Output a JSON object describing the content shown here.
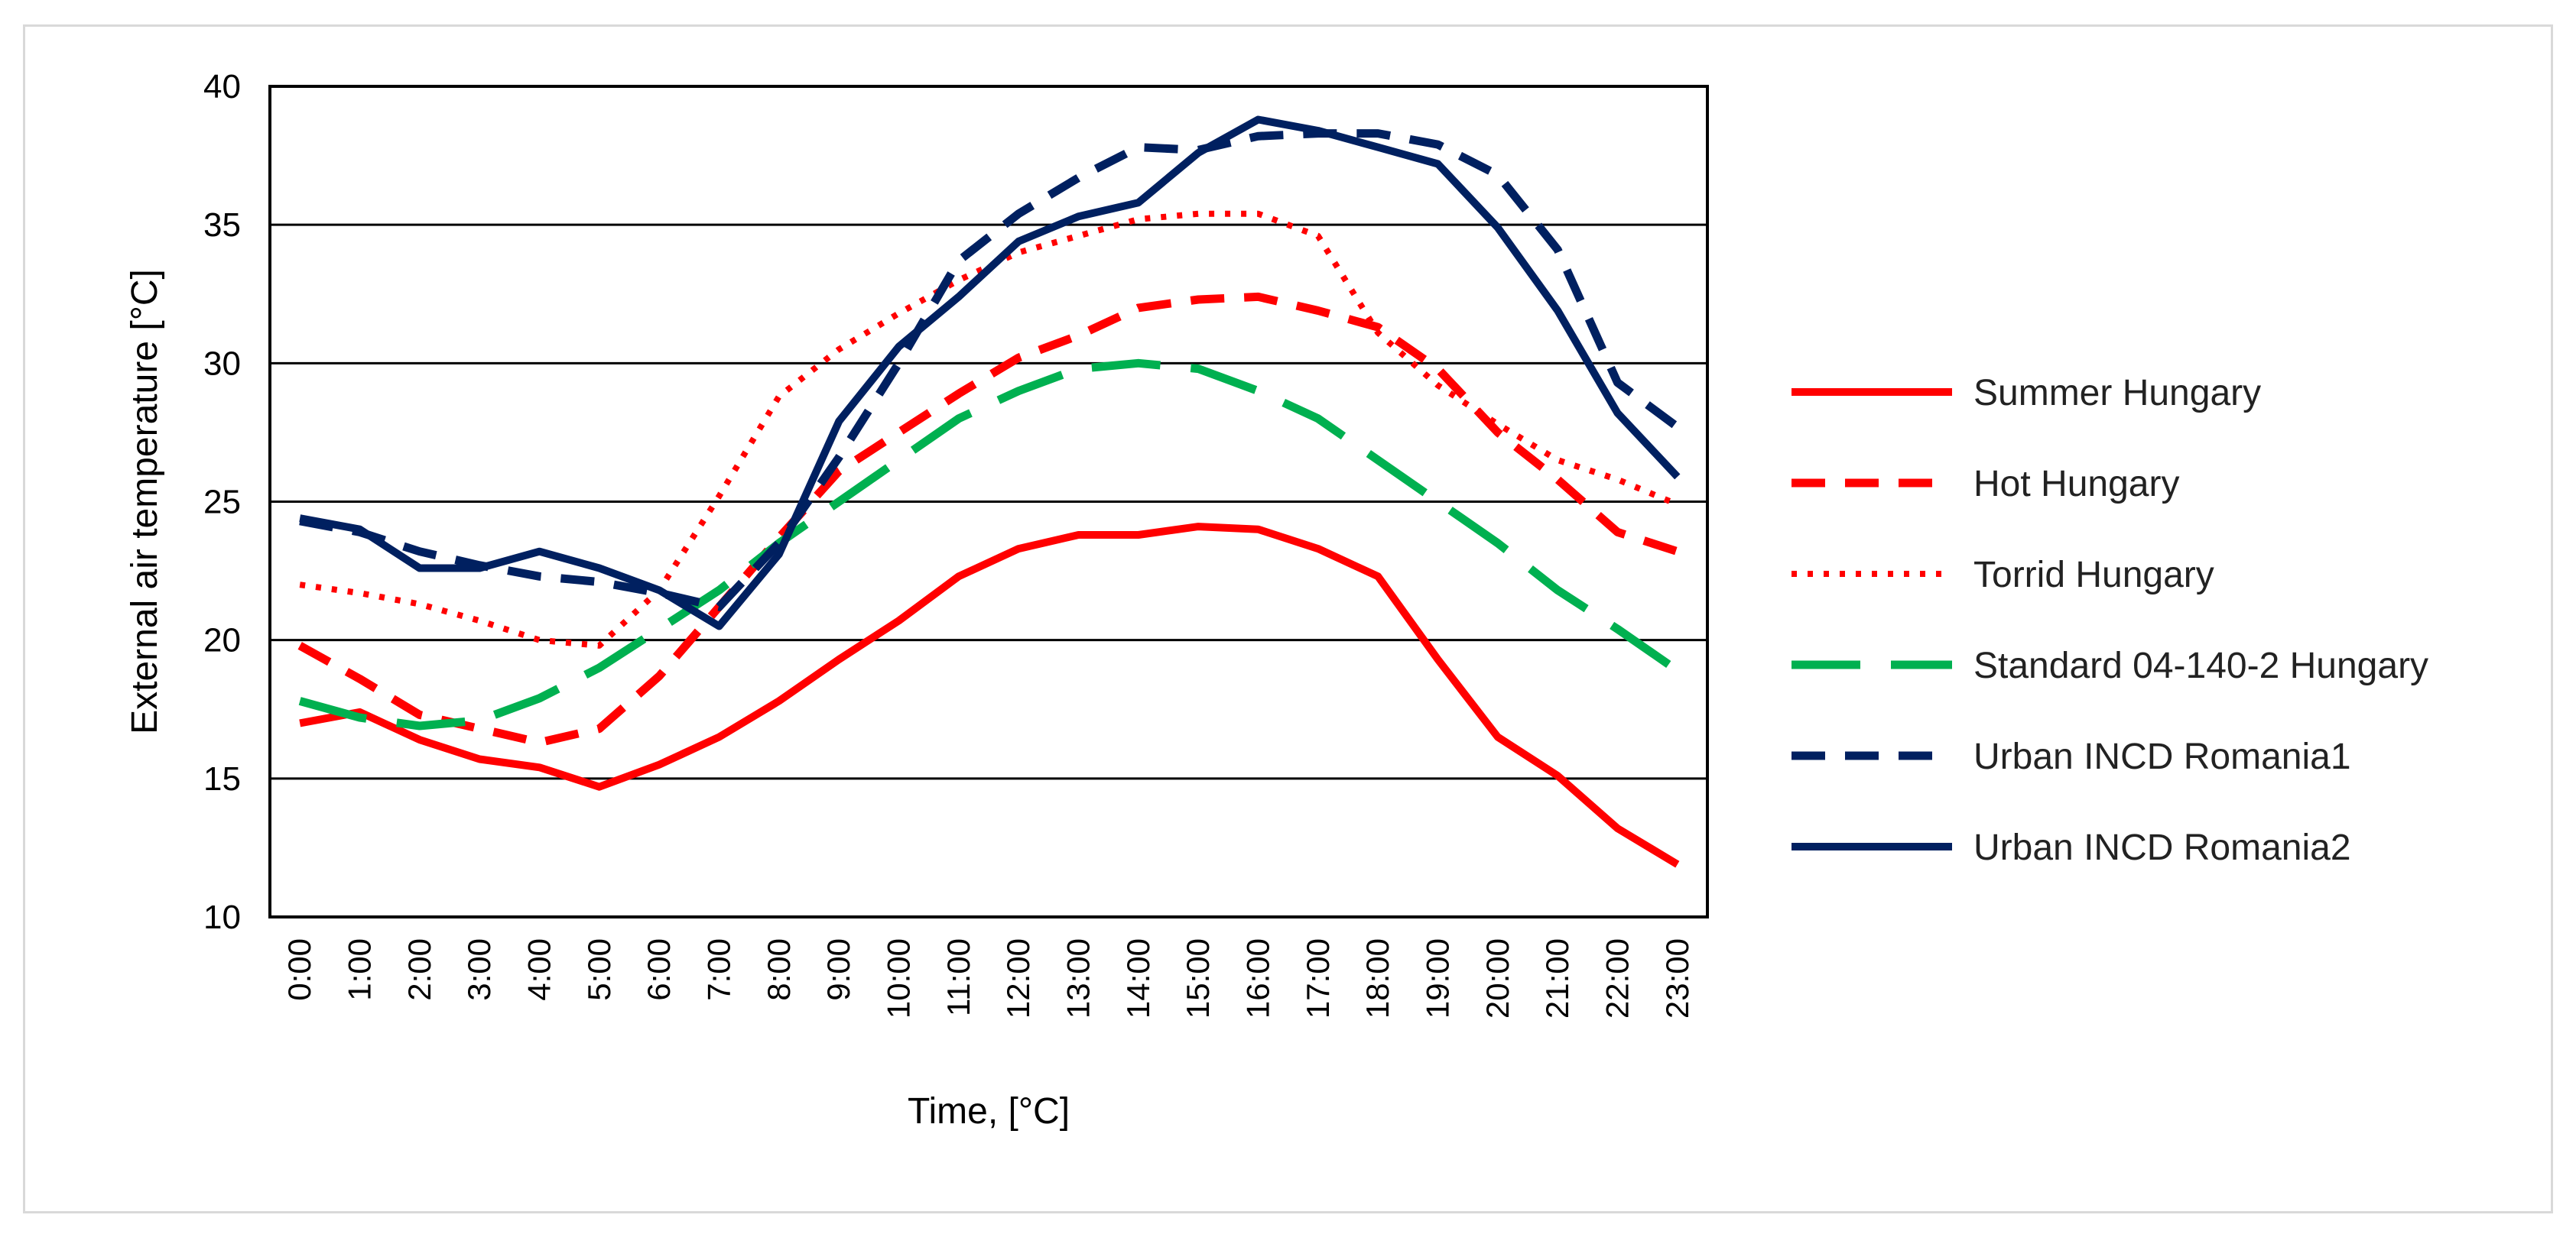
{
  "chart_data": {
    "type": "line",
    "title": "",
    "xlabel": "Time, [°C]",
    "ylabel": "External air temperature  [°C]",
    "ylim": [
      10,
      40
    ],
    "yticks": [
      10,
      15,
      20,
      25,
      30,
      35,
      40
    ],
    "grid": true,
    "legend_position": "right",
    "categories": [
      "0:00",
      "1:00",
      "2:00",
      "3:00",
      "4:00",
      "5:00",
      "6:00",
      "7:00",
      "8:00",
      "9:00",
      "10:00",
      "11:00",
      "12:00",
      "13:00",
      "14:00",
      "15:00",
      "16:00",
      "17:00",
      "18:00",
      "19:00",
      "20:00",
      "21:00",
      "22:00",
      "23:00"
    ],
    "series": [
      {
        "name": "Summer Hungary",
        "color": "#ff0000",
        "style": "solid",
        "values": [
          17.0,
          17.4,
          16.4,
          15.7,
          15.4,
          14.7,
          15.5,
          16.5,
          17.8,
          19.3,
          20.7,
          22.3,
          23.3,
          23.8,
          23.8,
          24.1,
          24.0,
          23.3,
          22.3,
          19.3,
          16.5,
          15.1,
          13.2,
          11.9
        ]
      },
      {
        "name": "Hot Hungary",
        "color": "#ff0000",
        "style": "dashed",
        "values": [
          19.8,
          18.6,
          17.3,
          16.8,
          16.3,
          16.8,
          18.7,
          21.2,
          23.7,
          26.1,
          27.5,
          28.9,
          30.2,
          31.0,
          32.0,
          32.3,
          32.4,
          31.9,
          31.3,
          29.8,
          27.5,
          25.8,
          23.9,
          23.2
        ]
      },
      {
        "name": "Torrid Hungary",
        "color": "#ff0000",
        "style": "dotted",
        "values": [
          22.0,
          21.7,
          21.3,
          20.7,
          20.0,
          19.8,
          21.8,
          25.2,
          28.8,
          30.5,
          31.8,
          33.0,
          34.0,
          34.6,
          35.2,
          35.4,
          35.4,
          34.6,
          31.1,
          29.2,
          27.8,
          26.5,
          25.8,
          24.9
        ]
      },
      {
        "name": "Standard 04-140-2 Hungary",
        "color": "#00b050",
        "style": "longdash",
        "values": [
          17.8,
          17.2,
          16.9,
          17.1,
          17.9,
          19.0,
          20.4,
          21.8,
          23.5,
          25.0,
          26.5,
          28.0,
          29.0,
          29.8,
          30.0,
          29.8,
          29.0,
          28.0,
          26.5,
          25.0,
          23.5,
          21.8,
          20.4,
          18.9
        ]
      },
      {
        "name": "Urban INCD Romania1",
        "color": "#002060",
        "style": "dashed",
        "values": [
          24.3,
          23.9,
          23.2,
          22.7,
          22.3,
          22.1,
          21.7,
          21.2,
          23.5,
          26.6,
          30.0,
          33.7,
          35.4,
          36.7,
          37.8,
          37.7,
          38.2,
          38.3,
          38.3,
          37.9,
          36.8,
          34.1,
          29.3,
          27.7
        ]
      },
      {
        "name": "Urban INCD Romania2",
        "color": "#002060",
        "style": "solid",
        "values": [
          24.4,
          24.0,
          22.6,
          22.6,
          23.2,
          22.6,
          21.8,
          20.5,
          23.1,
          27.9,
          30.6,
          32.4,
          34.4,
          35.3,
          35.8,
          37.6,
          38.8,
          38.4,
          37.8,
          37.2,
          34.9,
          31.9,
          28.2,
          25.9
        ]
      }
    ]
  }
}
